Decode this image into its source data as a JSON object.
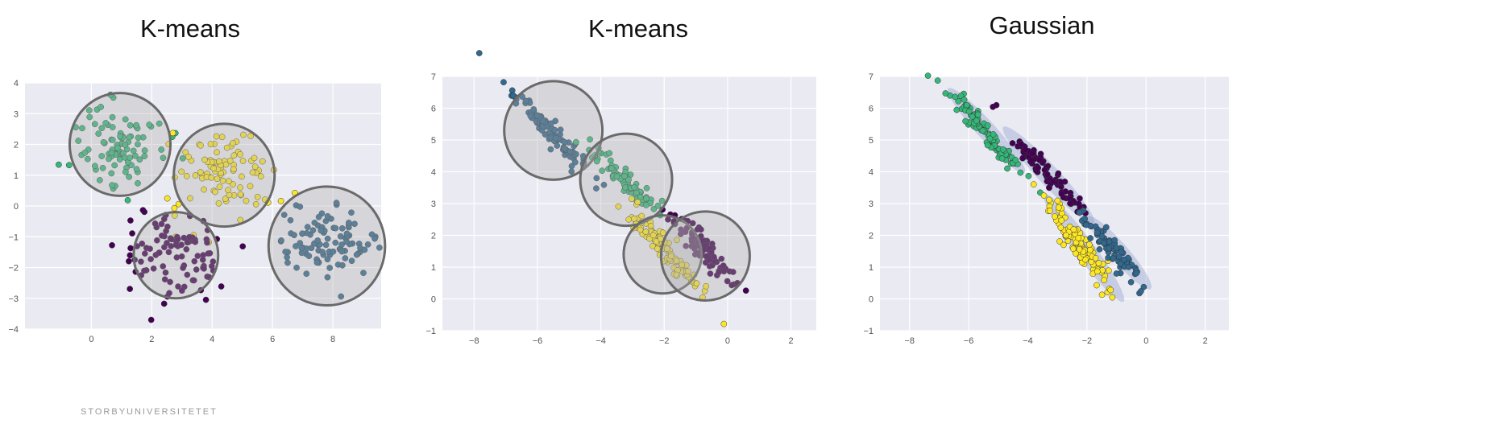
{
  "footer_text": "STORBYUNIVERSITETET",
  "chart_data": [
    {
      "type": "scatter",
      "title": "K-means",
      "xlim": [
        -2.2,
        9.6
      ],
      "ylim": [
        -4,
        4
      ],
      "xticks": [
        0,
        2,
        4,
        6,
        8
      ],
      "yticks": [
        -4,
        -3,
        -2,
        -1,
        0,
        1,
        2,
        3,
        4
      ],
      "grid": true,
      "legend": "none",
      "background": "#eaeaf2",
      "overlay": "circles",
      "series": [
        {
          "color": "#35b779",
          "center": [
            0.9,
            2.0
          ],
          "spread": [
            0.75,
            0.72
          ],
          "angle": 0,
          "n": 95
        },
        {
          "color": "#fde725",
          "center": [
            4.4,
            1.05
          ],
          "spread": [
            0.85,
            0.72
          ],
          "angle": 0,
          "n": 100
        },
        {
          "color": "#440154",
          "center": [
            2.7,
            -1.6
          ],
          "spread": [
            0.85,
            0.68
          ],
          "angle": 0,
          "n": 100
        },
        {
          "color": "#31688e",
          "center": [
            7.7,
            -1.2
          ],
          "spread": [
            0.8,
            0.52
          ],
          "angle": 0,
          "n": 100
        }
      ],
      "circles": [
        {
          "center": [
            0.95,
            2.0
          ],
          "radius": 1.67
        },
        {
          "center": [
            4.4,
            1.0
          ],
          "radius": 1.67
        },
        {
          "center": [
            2.8,
            -1.6
          ],
          "radius": 1.4
        },
        {
          "center": [
            7.8,
            -1.3
          ],
          "radius": 1.93
        }
      ]
    },
    {
      "type": "scatter",
      "title": "K-means",
      "xlim": [
        -9,
        2.8
      ],
      "ylim": [
        -1,
        7
      ],
      "xticks": [
        -8,
        -6,
        -4,
        -2,
        0,
        2
      ],
      "yticks": [
        -1,
        0,
        1,
        2,
        3,
        4,
        5,
        6,
        7
      ],
      "grid": true,
      "legend": "none",
      "background": "#eaeaf2",
      "overlay": "circles",
      "series": [
        {
          "color": "#31688e",
          "center": [
            -5.6,
            5.3
          ],
          "spread": [
            0.95,
            0.13
          ],
          "angle": -0.8,
          "n": 100
        },
        {
          "color": "#35b779",
          "center": [
            -3.3,
            3.8
          ],
          "spread": [
            0.75,
            0.13
          ],
          "angle": -0.76,
          "n": 85
        },
        {
          "color": "#fde725",
          "center": [
            -2.0,
            1.6
          ],
          "spread": [
            0.95,
            0.16
          ],
          "angle": -0.9,
          "n": 100
        },
        {
          "color": "#440154",
          "center": [
            -0.8,
            1.6
          ],
          "spread": [
            0.65,
            0.18
          ],
          "angle": -0.85,
          "n": 90
        }
      ],
      "circles": [
        {
          "center": [
            -5.5,
            5.3
          ],
          "radius": 1.55
        },
        {
          "center": [
            -3.2,
            3.75
          ],
          "radius": 1.45
        },
        {
          "center": [
            -2.05,
            1.4
          ],
          "radius": 1.23
        },
        {
          "center": [
            -0.7,
            1.35
          ],
          "radius": 1.4
        }
      ]
    },
    {
      "type": "scatter",
      "title": "Gaussian",
      "xlim": [
        -9,
        2.8
      ],
      "ylim": [
        -1,
        7
      ],
      "xticks": [
        -8,
        -6,
        -4,
        -2,
        0,
        2
      ],
      "yticks": [
        -1,
        0,
        1,
        2,
        3,
        4,
        5,
        6,
        7
      ],
      "grid": true,
      "legend": "none",
      "background": "#eaeaf2",
      "overlay": "ellipses",
      "series": [
        {
          "color": "#35b779",
          "center": [
            -5.5,
            5.3
          ],
          "spread": [
            0.95,
            0.13
          ],
          "angle": -0.8,
          "n": 100
        },
        {
          "color": "#440154",
          "center": [
            -3.4,
            4.0
          ],
          "spread": [
            0.95,
            0.14
          ],
          "angle": -0.78,
          "n": 90
        },
        {
          "color": "#fde725",
          "center": [
            -2.2,
            1.6
          ],
          "spread": [
            0.95,
            0.15
          ],
          "angle": -0.9,
          "n": 110
        },
        {
          "color": "#31688e",
          "center": [
            -1.1,
            1.5
          ],
          "spread": [
            0.75,
            0.14
          ],
          "angle": -0.82,
          "n": 90
        }
      ],
      "ellipses": [
        {
          "center": [
            -5.4,
            5.3
          ],
          "rx": 1.85,
          "ry": 0.3,
          "angle": -0.8
        },
        {
          "center": [
            -3.3,
            3.9
          ],
          "rx": 2.15,
          "ry": 0.33,
          "angle": -0.78
        },
        {
          "center": [
            -2.1,
            1.6
          ],
          "rx": 2.15,
          "ry": 0.32,
          "angle": -0.9
        },
        {
          "center": [
            -0.9,
            1.45
          ],
          "rx": 1.55,
          "ry": 0.3,
          "angle": -0.82
        }
      ]
    }
  ]
}
